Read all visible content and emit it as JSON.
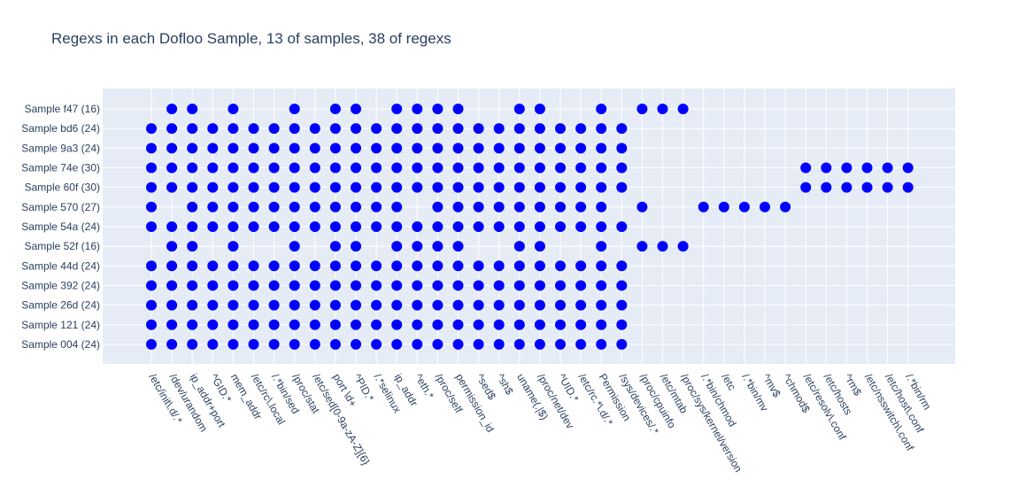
{
  "chart_data": {
    "type": "scatter",
    "title": "Regexs in each Dofloo Sample, 13 of samples, 38 of regexs",
    "xlabel": "",
    "ylabel": "",
    "grid": true,
    "marker_color": "#0000ff",
    "background_color": "#e5ecf6",
    "grid_color": "#ffffff",
    "text_color": "#2a3f5f",
    "x_categories": [
      "/etc/init\\.d/.*",
      "/dev/urandom",
      "ip_addr+port",
      "^GID.*",
      "mem_addr",
      "/etc/rc\\.local",
      "/.*bin/sed",
      "/proc/stat",
      "/etc/sed[0-9a-zA-Z]{6}",
      "port \\d+",
      "^PID.*",
      "/.*selinux",
      "ip_addr",
      "^eth.*",
      "/proc/self",
      "permission_id",
      "^sed$",
      "^sh$",
      "uname(.|$)",
      "/proc/net/dev",
      "^UID.*",
      "/etc/rc.*\\.d/.*",
      "Permission",
      "/sys/devices/.*",
      "/proc/cpuinfo",
      "/etc/mtab",
      "/proc/sys/kernel/version",
      "/.*bin/chmod",
      "/etc",
      "/.*bin/mv",
      "^mv$",
      "^chmod$",
      "/etc/resolv\\.conf",
      "/etc/hosts",
      "^rm$",
      "/etc/nsswitch\\.conf",
      "/etc/host\\.conf",
      "/.*bin/rm"
    ],
    "y_categories": [
      "Sample 004 (24)",
      "Sample 121 (24)",
      "Sample 26d (24)",
      "Sample 392 (24)",
      "Sample 44d (24)",
      "Sample 52f (16)",
      "Sample 54a (24)",
      "Sample 570 (27)",
      "Sample 60f (30)",
      "Sample 74e (30)",
      "Sample 9a3 (24)",
      "Sample bd6 (24)",
      "Sample f47 (16)"
    ],
    "points": [
      {
        "sample": "Sample 004 (24)",
        "regex_indices": [
          0,
          1,
          2,
          3,
          4,
          5,
          6,
          7,
          8,
          9,
          10,
          11,
          12,
          13,
          14,
          15,
          16,
          17,
          18,
          19,
          20,
          21,
          22,
          23
        ]
      },
      {
        "sample": "Sample 121 (24)",
        "regex_indices": [
          0,
          1,
          2,
          3,
          4,
          5,
          6,
          7,
          8,
          9,
          10,
          11,
          12,
          13,
          14,
          15,
          16,
          17,
          18,
          19,
          20,
          21,
          22,
          23
        ]
      },
      {
        "sample": "Sample 26d (24)",
        "regex_indices": [
          0,
          1,
          2,
          3,
          4,
          5,
          6,
          7,
          8,
          9,
          10,
          11,
          12,
          13,
          14,
          15,
          16,
          17,
          18,
          19,
          20,
          21,
          22,
          23
        ]
      },
      {
        "sample": "Sample 392 (24)",
        "regex_indices": [
          0,
          1,
          2,
          3,
          4,
          5,
          6,
          7,
          8,
          9,
          10,
          11,
          12,
          13,
          14,
          15,
          16,
          17,
          18,
          19,
          20,
          21,
          22,
          23
        ]
      },
      {
        "sample": "Sample 44d (24)",
        "regex_indices": [
          0,
          1,
          2,
          3,
          4,
          5,
          6,
          7,
          8,
          9,
          10,
          11,
          12,
          13,
          14,
          15,
          16,
          17,
          18,
          19,
          20,
          21,
          22,
          23
        ]
      },
      {
        "sample": "Sample 52f (16)",
        "regex_indices": [
          1,
          2,
          4,
          7,
          9,
          10,
          12,
          13,
          14,
          15,
          18,
          19,
          22,
          24,
          25,
          26
        ]
      },
      {
        "sample": "Sample 54a (24)",
        "regex_indices": [
          0,
          1,
          2,
          3,
          4,
          5,
          6,
          7,
          8,
          9,
          10,
          11,
          12,
          13,
          14,
          15,
          16,
          17,
          18,
          19,
          20,
          21,
          22,
          23
        ]
      },
      {
        "sample": "Sample 570 (27)",
        "regex_indices": [
          0,
          2,
          3,
          4,
          5,
          6,
          7,
          8,
          9,
          10,
          11,
          12,
          14,
          15,
          16,
          17,
          18,
          19,
          20,
          21,
          22,
          24,
          27,
          28,
          29,
          30,
          31
        ]
      },
      {
        "sample": "Sample 60f (30)",
        "regex_indices": [
          0,
          1,
          2,
          3,
          4,
          5,
          6,
          7,
          8,
          9,
          10,
          11,
          12,
          13,
          14,
          15,
          16,
          17,
          18,
          19,
          20,
          21,
          22,
          23,
          32,
          33,
          34,
          35,
          36,
          37
        ]
      },
      {
        "sample": "Sample 74e (30)",
        "regex_indices": [
          0,
          1,
          2,
          3,
          4,
          5,
          6,
          7,
          8,
          9,
          10,
          11,
          12,
          13,
          14,
          15,
          16,
          17,
          18,
          19,
          20,
          21,
          22,
          23,
          32,
          33,
          34,
          35,
          36,
          37
        ]
      },
      {
        "sample": "Sample 9a3 (24)",
        "regex_indices": [
          0,
          1,
          2,
          3,
          4,
          5,
          6,
          7,
          8,
          9,
          10,
          11,
          12,
          13,
          14,
          15,
          16,
          17,
          18,
          19,
          20,
          21,
          22,
          23
        ]
      },
      {
        "sample": "Sample bd6 (24)",
        "regex_indices": [
          0,
          1,
          2,
          3,
          4,
          5,
          6,
          7,
          8,
          9,
          10,
          11,
          12,
          13,
          14,
          15,
          16,
          17,
          18,
          19,
          20,
          21,
          22,
          23
        ]
      },
      {
        "sample": "Sample f47 (16)",
        "regex_indices": [
          1,
          2,
          4,
          7,
          9,
          10,
          12,
          13,
          14,
          15,
          18,
          19,
          22,
          24,
          25,
          26
        ]
      }
    ]
  }
}
